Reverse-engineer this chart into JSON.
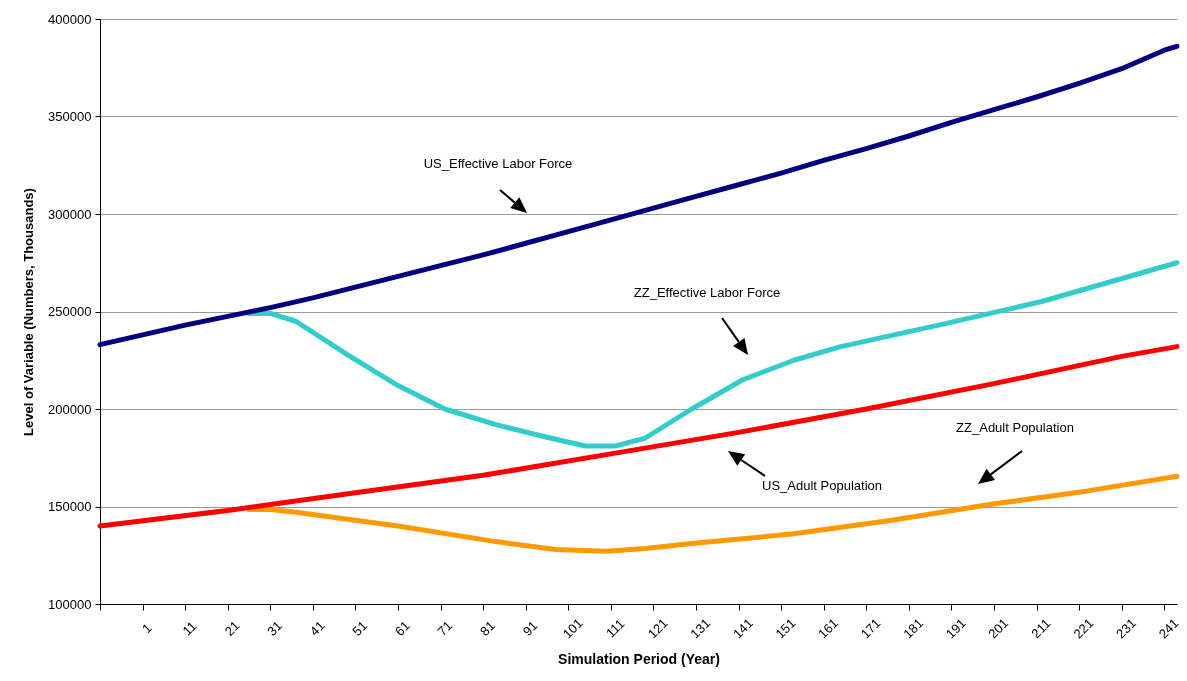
{
  "chart_data": {
    "type": "line",
    "xlabel": "Simulation Period (Year)",
    "ylabel": "Level of Variable (Numbers, Thousands)",
    "xlim": [
      -9,
      244
    ],
    "xticks": [
      {
        "value": -9,
        "label": null
      },
      1,
      11,
      21,
      31,
      41,
      51,
      61,
      71,
      81,
      91,
      101,
      111,
      121,
      131,
      141,
      151,
      161,
      171,
      181,
      191,
      201,
      211,
      221,
      231,
      241
    ],
    "ylim": [
      100000,
      400000
    ],
    "yticks": [
      100000,
      150000,
      200000,
      250000,
      300000,
      350000,
      400000
    ],
    "grid": "y",
    "line_style": "solid",
    "marker": "none",
    "series": [
      {
        "color": "#000080",
        "x": [
          -9,
          1,
          11,
          21,
          31,
          41,
          51,
          61,
          71,
          81,
          91,
          101,
          111,
          121,
          131,
          141,
          151,
          161,
          171,
          181,
          191,
          201,
          211,
          221,
          231,
          241,
          244
        ],
        "values": [
          233000,
          238000,
          243000,
          247500,
          252000,
          257000,
          262500,
          268000,
          273500,
          279000,
          285000,
          291000,
          297000,
          303000,
          309000,
          315000,
          321000,
          327500,
          333500,
          340000,
          347000,
          353500,
          360000,
          367000,
          374500,
          384000,
          386000
        ]
      },
      {
        "color": "#33cccc",
        "x": [
          26,
          31,
          37,
          49,
          61,
          72,
          84,
          95,
          105,
          112,
          119,
          130,
          142,
          154,
          165,
          188,
          212,
          244
        ],
        "values": [
          249000,
          249000,
          245000,
          228000,
          212000,
          200000,
          192000,
          186000,
          181000,
          181000,
          185000,
          200000,
          215000,
          225000,
          232000,
          243000,
          255000,
          275000
        ]
      },
      {
        "color": "#ff0000",
        "x": [
          -9,
          21,
          51,
          81,
          111,
          141,
          171,
          201,
          231,
          244
        ],
        "values": [
          140000,
          148000,
          157000,
          166000,
          177000,
          188000,
          200000,
          213000,
          227000,
          232000
        ]
      },
      {
        "color": "#ff9900",
        "x": [
          26,
          31,
          37,
          61,
          84,
          98,
          110,
          119,
          130,
          154,
          177,
          200,
          223,
          244
        ],
        "values": [
          148500,
          148500,
          147000,
          140000,
          132000,
          128000,
          127000,
          128500,
          131000,
          136000,
          143000,
          151000,
          158000,
          165500
        ]
      }
    ],
    "annotations": [
      "US_Effective Labor Force",
      "ZZ_Effective Labor Force",
      "US_Adult Population",
      "ZZ_Adult Population"
    ]
  }
}
